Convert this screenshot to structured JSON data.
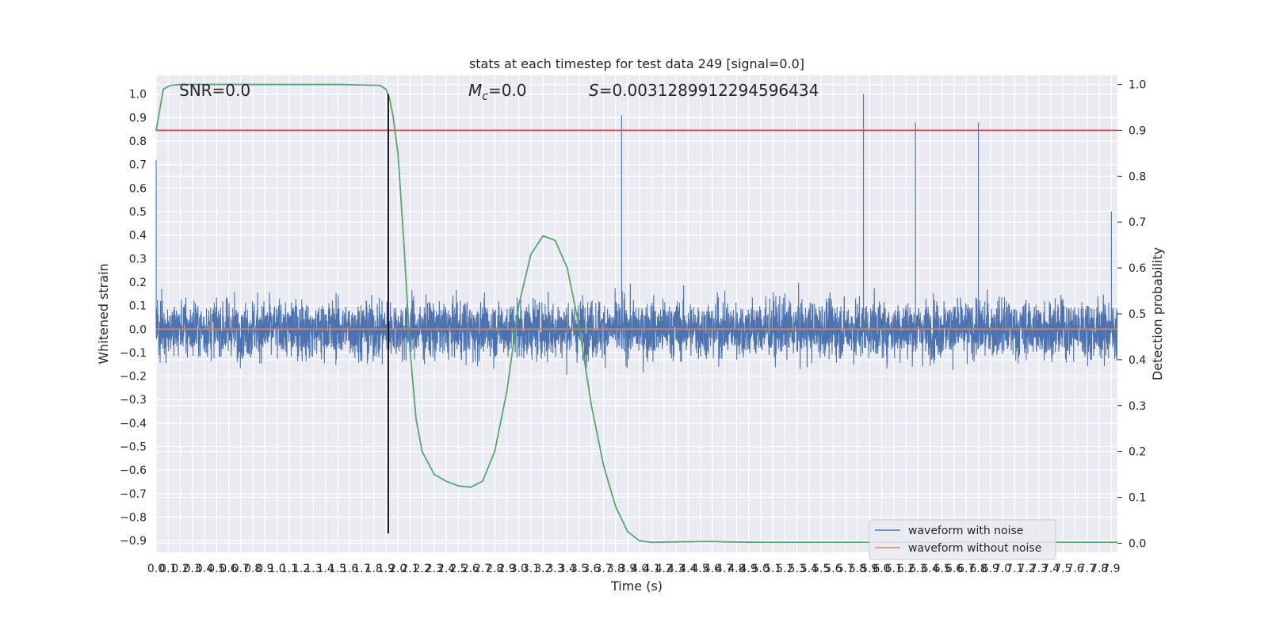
{
  "chart_data": {
    "type": "line",
    "title": "stats at each timestep for test data 249 [signal=0.0]",
    "xlabel": "Time (s)",
    "ylabel": "Whitened strain",
    "y2label": "Detection probability",
    "xlim": [
      0.0,
      7.95
    ],
    "ylim": [
      -0.95,
      1.08
    ],
    "y2lim": [
      -0.02,
      1.02
    ],
    "x_tick_step": 0.1,
    "x_tick_labels": [
      "0.0",
      "0.1",
      "0.2",
      "0.3",
      "0.4",
      "0.5",
      "0.6",
      "0.7",
      "0.8",
      "0.9",
      "1.0",
      "1.1",
      "1.2",
      "1.3",
      "1.4",
      "1.5",
      "1.6",
      "1.7",
      "1.8",
      "1.9",
      "2.0",
      "2.1",
      "2.2",
      "2.3",
      "2.4",
      "2.5",
      "2.6",
      "2.7",
      "2.8",
      "2.9",
      "3.0",
      "3.1",
      "3.2",
      "3.3",
      "3.4",
      "3.5",
      "3.6",
      "3.7",
      "3.8",
      "3.9",
      "4.0",
      "4.1",
      "4.2",
      "4.3",
      "4.4",
      "4.5",
      "4.6",
      "4.7",
      "4.8",
      "4.9",
      "5.0",
      "5.1",
      "5.2",
      "5.3",
      "5.4",
      "5.5",
      "5.6",
      "5.7",
      "5.8",
      "5.9",
      "6.0",
      "6.1",
      "6.2",
      "6.3",
      "6.4",
      "6.5",
      "6.6",
      "6.7",
      "6.8",
      "6.9",
      "7.0",
      "7.1",
      "7.2",
      "7.3",
      "7.4",
      "7.5",
      "7.6",
      "7.7",
      "7.8",
      "7.9"
    ],
    "y_tick_labels": [
      "1.0",
      "0.9",
      "0.8",
      "0.7",
      "0.6",
      "0.5",
      "0.4",
      "0.3",
      "0.2",
      "0.1",
      "0.0",
      "−0.1",
      "−0.2",
      "−0.3",
      "−0.4",
      "−0.5",
      "−0.6",
      "−0.7",
      "−0.8",
      "−0.9"
    ],
    "y_ticks": [
      1.0,
      0.9,
      0.8,
      0.7,
      0.6,
      0.5,
      0.4,
      0.3,
      0.2,
      0.1,
      0.0,
      -0.1,
      -0.2,
      -0.3,
      -0.4,
      -0.5,
      -0.6,
      -0.7,
      -0.8,
      -0.9
    ],
    "y2_tick_labels": [
      "1.0",
      "0.9",
      "0.8",
      "0.7",
      "0.6",
      "0.5",
      "0.4",
      "0.3",
      "0.2",
      "0.1",
      "0.0"
    ],
    "y2_ticks": [
      1.0,
      0.9,
      0.8,
      0.7,
      0.6,
      0.5,
      0.4,
      0.3,
      0.2,
      0.1,
      0.0
    ],
    "grid": true,
    "legend_position": "lower-right",
    "annotations": {
      "snr": "SNR=0.0",
      "mc_symbol": "M",
      "mc_sub": "c",
      "mc_value": "=0.0",
      "s_symbol": "S",
      "s_value": "=0.0031289912294596434"
    },
    "series": [
      {
        "name": "waveform with noise",
        "color": "#4c72b0",
        "axis": "left",
        "description_points": {
          "x": [
            0.0,
            3.85,
            5.85,
            6.28,
            6.8,
            7.9
          ],
          "y": [
            0.72,
            0.91,
            1.0,
            0.88,
            0.88,
            0.5
          ]
        }
      },
      {
        "name": "waveform without noise",
        "color": "#dd8452",
        "axis": "left",
        "x": [
          0.0,
          7.95
        ],
        "y": [
          0.0,
          0.0
        ]
      },
      {
        "color": "#55a868",
        "axis": "right",
        "x": [
          0.0,
          0.06,
          0.12,
          0.2,
          0.5,
          1.0,
          1.5,
          1.85,
          1.9,
          1.93,
          1.96,
          2.0,
          2.05,
          2.1,
          2.15,
          2.2,
          2.3,
          2.4,
          2.5,
          2.6,
          2.7,
          2.8,
          2.9,
          3.0,
          3.1,
          3.2,
          3.3,
          3.4,
          3.5,
          3.6,
          3.7,
          3.8,
          3.9,
          4.0,
          4.1,
          4.3,
          4.6,
          4.7,
          5.0,
          5.5,
          6.0,
          6.5,
          7.0,
          7.5,
          7.95
        ],
        "y": [
          0.9,
          0.99,
          0.998,
          1.0,
          1.0,
          1.0,
          1.0,
          0.998,
          0.99,
          0.97,
          0.93,
          0.85,
          0.65,
          0.42,
          0.27,
          0.2,
          0.15,
          0.135,
          0.125,
          0.122,
          0.135,
          0.2,
          0.33,
          0.52,
          0.63,
          0.67,
          0.66,
          0.6,
          0.47,
          0.3,
          0.17,
          0.08,
          0.025,
          0.005,
          0.002,
          0.003,
          0.004,
          0.003,
          0.002,
          0.002,
          0.002,
          0.002,
          0.002,
          0.002,
          0.002
        ]
      },
      {
        "color": "#c44e52",
        "axis": "right",
        "x": [
          0.0,
          7.95
        ],
        "y": [
          0.9,
          0.9
        ]
      },
      {
        "color": "#000000",
        "axis": "left",
        "vertical_at_x": 1.92,
        "y": [
          -0.87,
          1.0
        ]
      }
    ]
  }
}
